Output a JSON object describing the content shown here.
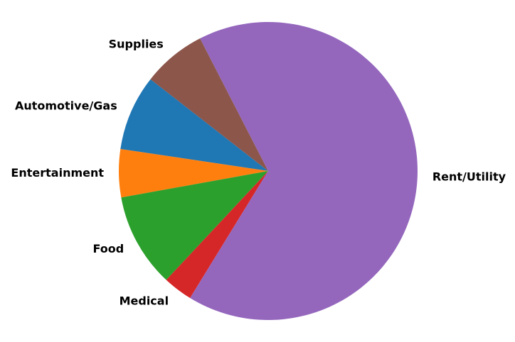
{
  "chart_data": {
    "type": "pie",
    "title": "",
    "labels": [
      "Automotive/Gas",
      "Entertainment",
      "Food",
      "Medical",
      "Rent/Utility",
      "Supplies"
    ],
    "values": [
      8.2,
      5.2,
      10.2,
      3.2,
      66.3,
      6.9
    ],
    "colors": [
      "#1f77b4",
      "#ff7f0e",
      "#2ca02c",
      "#d62728",
      "#9467bd",
      "#8c564b"
    ],
    "start_angle_deg": 142,
    "direction": "counterclockwise",
    "legend": "none"
  }
}
